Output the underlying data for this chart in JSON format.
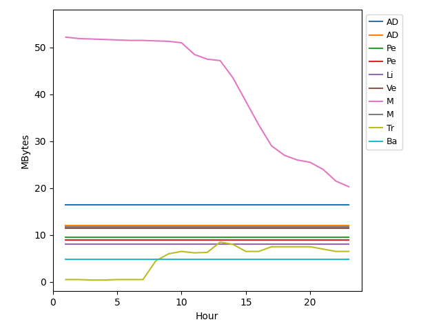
{
  "hours": [
    1,
    2,
    3,
    4,
    5,
    6,
    7,
    8,
    9,
    10,
    11,
    12,
    13,
    14,
    15,
    16,
    17,
    18,
    19,
    20,
    21,
    22,
    23
  ],
  "series": {
    "AD_blue": {
      "label": "AD",
      "color": "#1f77b4",
      "values": [
        16.5,
        16.5,
        16.5,
        16.5,
        16.5,
        16.5,
        16.5,
        16.5,
        16.5,
        16.5,
        16.5,
        16.5,
        16.5,
        16.5,
        16.5,
        16.5,
        16.5,
        16.5,
        16.5,
        16.5,
        16.5,
        16.5,
        16.5
      ]
    },
    "AD_orange": {
      "label": "AD",
      "color": "#ff7f0e",
      "values": [
        12.0,
        12.0,
        12.0,
        12.0,
        12.0,
        12.0,
        12.0,
        12.0,
        12.0,
        12.0,
        12.0,
        12.0,
        12.0,
        12.0,
        12.0,
        12.0,
        12.0,
        12.0,
        12.0,
        12.0,
        12.0,
        12.0,
        12.0
      ]
    },
    "Pe_green": {
      "label": "Pe",
      "color": "#2ca02c",
      "values": [
        9.5,
        9.5,
        9.5,
        9.5,
        9.5,
        9.5,
        9.5,
        9.5,
        9.5,
        9.5,
        9.5,
        9.5,
        9.5,
        9.5,
        9.5,
        9.5,
        9.5,
        9.5,
        9.5,
        9.5,
        9.5,
        9.5,
        9.5
      ]
    },
    "Pe_red": {
      "label": "Pe",
      "color": "#d62728",
      "values": [
        9.0,
        9.0,
        9.0,
        9.0,
        9.0,
        9.0,
        9.0,
        9.0,
        9.0,
        9.0,
        9.0,
        9.0,
        9.0,
        9.0,
        9.0,
        9.0,
        9.0,
        9.0,
        9.0,
        9.0,
        9.0,
        9.0,
        9.0
      ]
    },
    "Li_purple": {
      "label": "Li",
      "color": "#9467bd",
      "values": [
        8.0,
        8.0,
        8.0,
        8.0,
        8.0,
        8.0,
        8.0,
        8.0,
        8.0,
        8.0,
        8.0,
        8.0,
        8.0,
        8.0,
        8.0,
        8.0,
        8.0,
        8.0,
        8.0,
        8.0,
        8.0,
        8.0,
        8.0
      ]
    },
    "Ve_brown": {
      "label": "Ve",
      "color": "#8c564b",
      "values": [
        11.5,
        11.5,
        11.5,
        11.5,
        11.5,
        11.5,
        11.5,
        11.5,
        11.5,
        11.5,
        11.5,
        11.5,
        11.5,
        11.5,
        11.5,
        11.5,
        11.5,
        11.5,
        11.5,
        11.5,
        11.5,
        11.5,
        11.5
      ]
    },
    "M_pink": {
      "label": "M",
      "color": "#e377c2",
      "values": [
        52.2,
        51.9,
        51.8,
        51.7,
        51.6,
        51.5,
        51.5,
        51.4,
        51.3,
        51.0,
        48.5,
        47.5,
        47.2,
        43.5,
        38.5,
        33.5,
        29.0,
        27.0,
        26.0,
        25.5,
        24.0,
        21.5,
        20.3
      ]
    },
    "M_gray": {
      "label": "M",
      "color": "#7f7f7f",
      "values": [
        11.7,
        11.7,
        11.7,
        11.7,
        11.7,
        11.7,
        11.7,
        11.7,
        11.7,
        11.7,
        11.7,
        11.7,
        11.7,
        11.7,
        11.7,
        11.7,
        11.7,
        11.7,
        11.7,
        11.7,
        11.7,
        11.7,
        11.7
      ]
    },
    "Tr_yellow": {
      "label": "Tr",
      "color": "#bcbd22",
      "values": [
        0.5,
        0.5,
        0.4,
        0.4,
        0.5,
        0.5,
        0.5,
        4.5,
        6.0,
        6.5,
        6.2,
        6.3,
        8.5,
        8.0,
        6.5,
        6.5,
        7.5,
        7.5,
        7.5,
        7.5,
        7.0,
        6.5,
        6.5
      ]
    },
    "Ba_cyan": {
      "label": "Ba",
      "color": "#17becf",
      "values": [
        4.8,
        4.8,
        4.8,
        4.8,
        4.8,
        4.8,
        4.8,
        4.8,
        4.8,
        4.8,
        4.8,
        4.8,
        4.8,
        4.8,
        4.8,
        4.8,
        4.8,
        4.8,
        4.8,
        4.8,
        4.8,
        4.8,
        4.8
      ]
    }
  },
  "xlabel": "Hour",
  "ylabel": "MBytes",
  "xlim": [
    0,
    24
  ],
  "ylim": [
    -2,
    58
  ],
  "figsize": [
    6.4,
    4.8
  ],
  "dpi": 100,
  "xticks": [
    0,
    5,
    10,
    15,
    20
  ]
}
